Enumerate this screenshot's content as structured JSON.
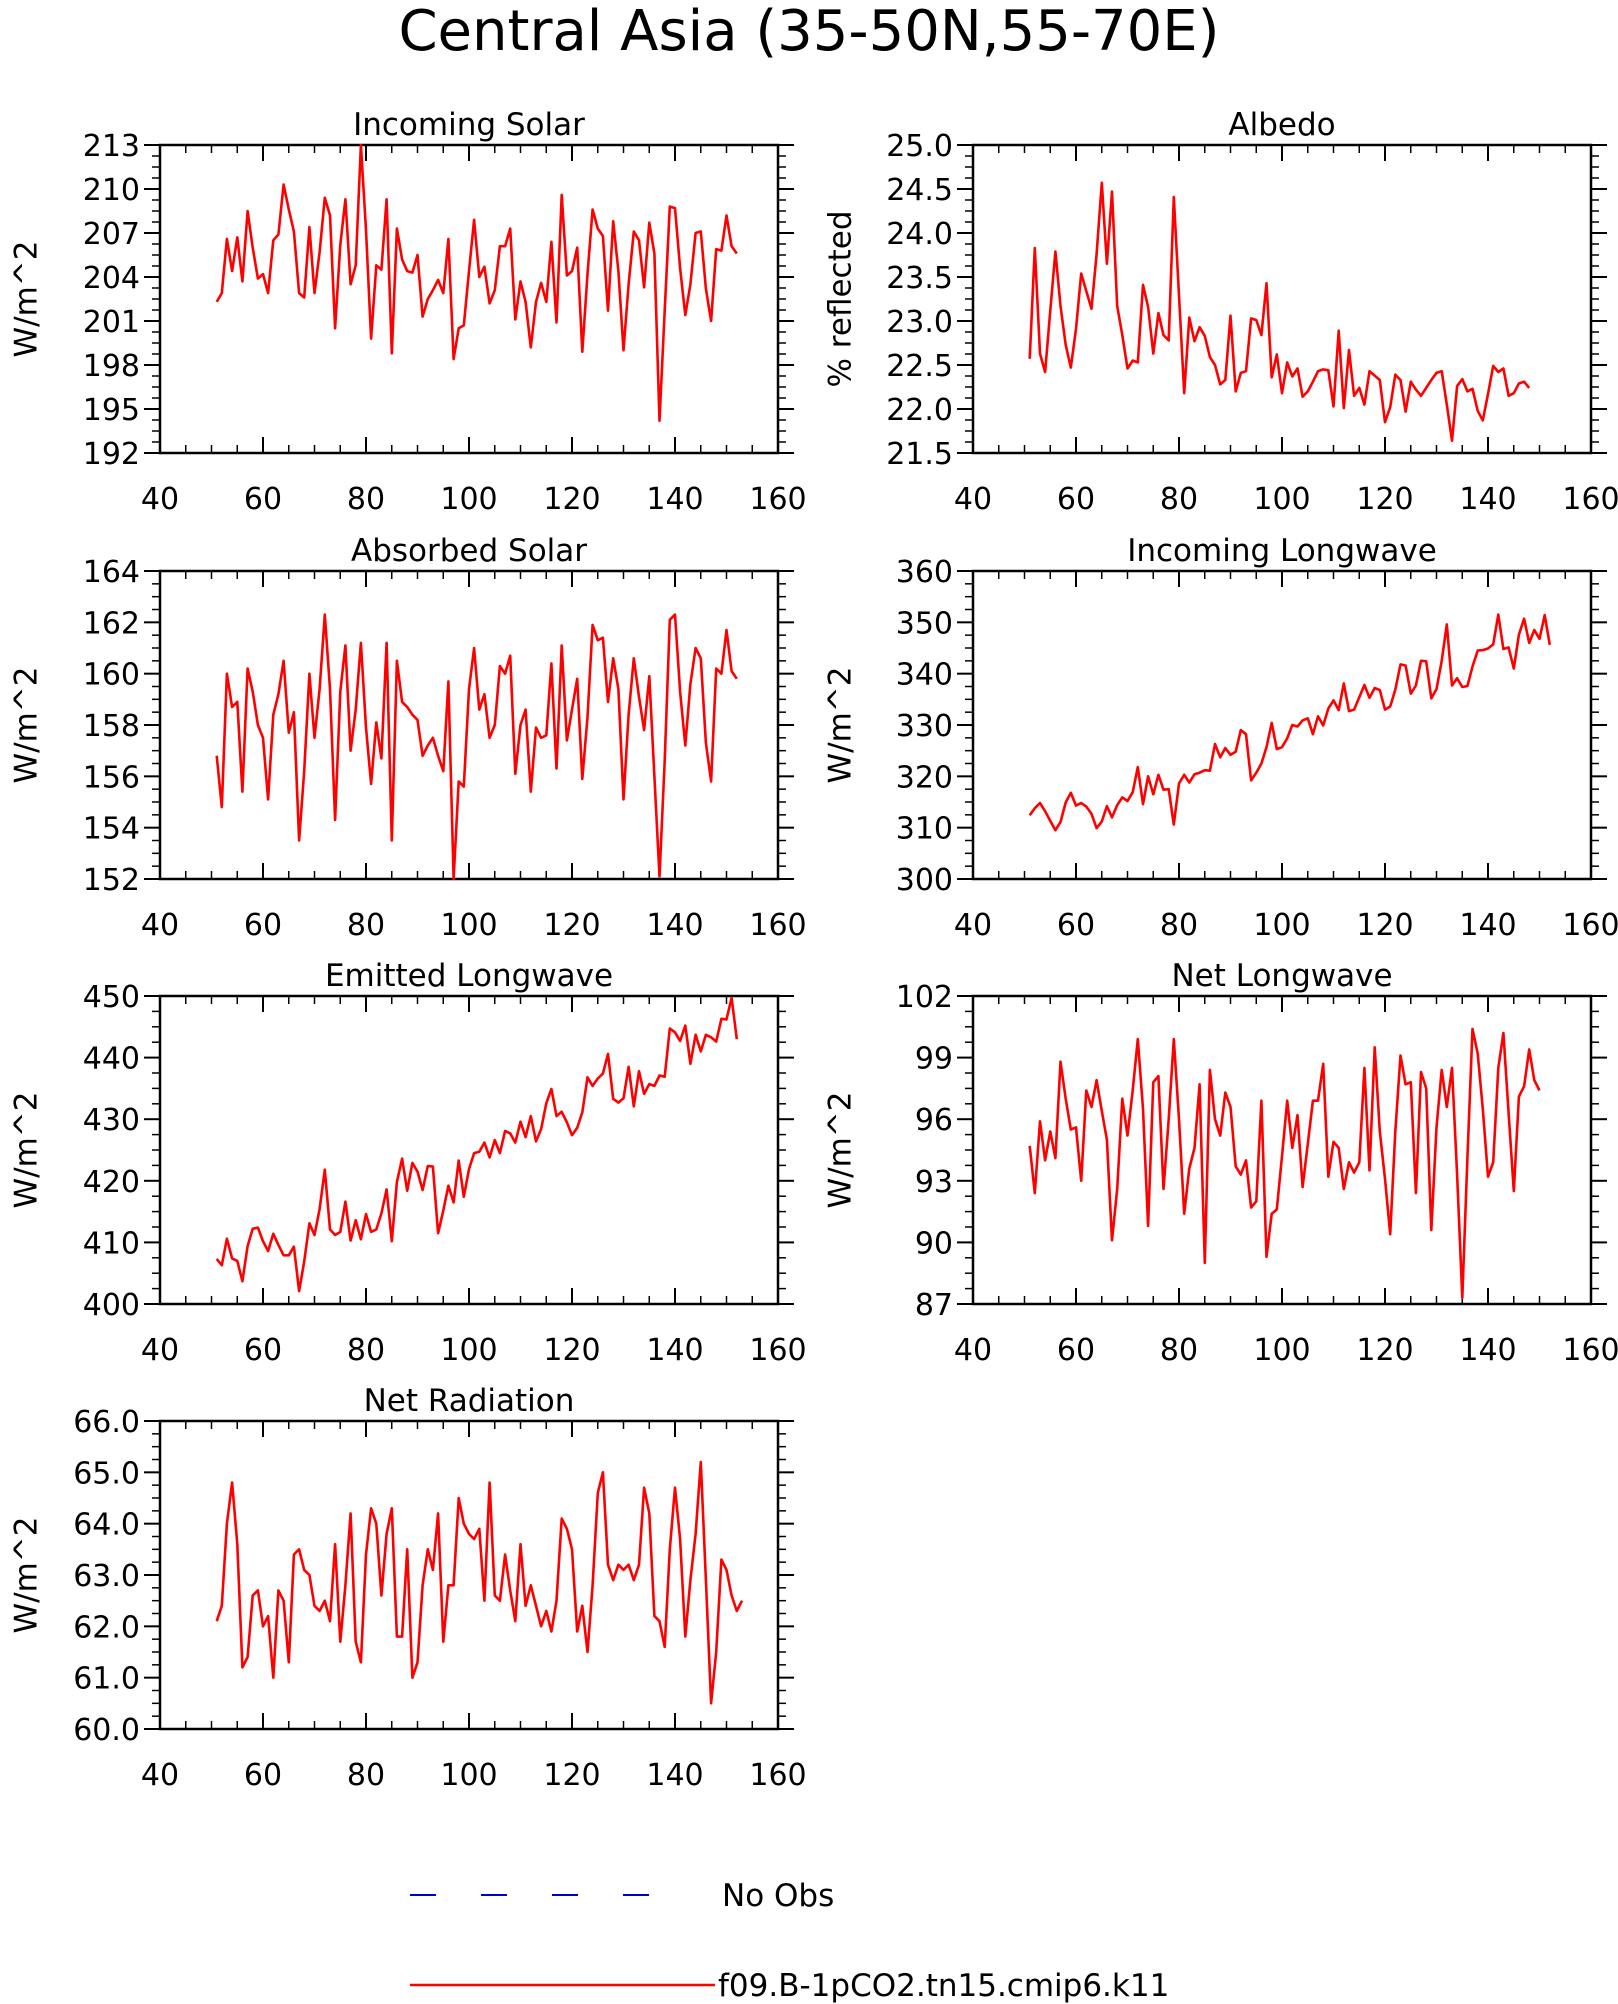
{
  "title": "Central Asia (35-50N,55-70E)",
  "colors": {
    "model": "#ff0000",
    "obs": "#0000cc",
    "axis": "#000000"
  },
  "legend": {
    "obs_label": "No Obs",
    "model_label": "f09.B-1pCO2.tn15.cmip6.k11"
  },
  "chart_data": [
    {
      "type": "line",
      "title": "Incoming Solar",
      "ylabel": "W/m^2",
      "xlim": [
        40,
        160
      ],
      "ylim": [
        192,
        213
      ],
      "xticks": [
        "40",
        "60",
        "80",
        "100",
        "120",
        "140",
        "160"
      ],
      "yticks": [
        "192",
        "195",
        "198",
        "201",
        "204",
        "207",
        "210",
        "213"
      ],
      "x_start": 51,
      "series": [
        {
          "values": [
            202.3,
            202.9,
            206.6,
            204.4,
            206.7,
            203.7,
            208.5,
            206.0,
            203.9,
            204.2,
            202.9,
            206.5,
            206.9,
            210.3,
            208.6,
            207.1,
            202.9,
            202.6,
            207.4,
            202.9,
            205.7,
            209.4,
            208.2,
            200.5,
            206.2,
            209.3,
            203.5,
            204.8,
            213.0,
            207.2,
            199.8,
            204.8,
            204.5,
            209.3,
            198.8,
            207.3,
            205.2,
            204.4,
            204.3,
            205.5,
            201.3,
            202.5,
            203.1,
            203.8,
            202.9,
            206.6,
            198.4,
            200.5,
            200.7,
            204.4,
            207.9,
            204.0,
            204.7,
            202.2,
            203.1,
            206.1,
            206.1,
            207.3,
            201.1,
            203.7,
            202.3,
            199.2,
            202.3,
            203.6,
            202.3,
            206.4,
            200.9,
            209.6,
            204.1,
            204.4,
            206.0,
            198.9,
            204.2,
            208.6,
            207.3,
            206.8,
            201.7,
            207.8,
            204.4,
            199.0,
            203.5,
            207.1,
            206.5,
            203.3,
            207.7,
            205.6,
            194.2,
            201.7,
            208.8,
            208.7,
            204.6,
            201.4,
            203.5,
            207.0,
            207.1,
            203.2,
            201.0,
            205.9,
            205.8,
            208.2,
            206.1,
            205.6
          ]
        }
      ]
    },
    {
      "type": "line",
      "title": "Albedo",
      "ylabel": "% reflected",
      "xlim": [
        40,
        160
      ],
      "ylim": [
        21.5,
        25.0
      ],
      "xticks": [
        "40",
        "60",
        "80",
        "100",
        "120",
        "140",
        "160"
      ],
      "yticks": [
        "21.5",
        "22.0",
        "22.5",
        "23.0",
        "23.5",
        "24.0",
        "24.5",
        "25.0"
      ],
      "x_start": 51,
      "series": [
        {
          "values": [
            22.57,
            23.83,
            22.63,
            22.42,
            23.12,
            23.79,
            23.17,
            22.73,
            22.47,
            22.91,
            23.54,
            23.34,
            23.14,
            23.76,
            24.57,
            23.65,
            24.47,
            23.17,
            22.84,
            22.46,
            22.55,
            22.53,
            23.41,
            23.16,
            22.63,
            23.09,
            22.84,
            22.78,
            24.41,
            23.29,
            22.18,
            23.04,
            22.77,
            22.93,
            22.83,
            22.59,
            22.5,
            22.28,
            22.33,
            23.06,
            22.2,
            22.41,
            22.43,
            23.03,
            23.01,
            22.84,
            23.43,
            22.36,
            22.62,
            22.18,
            22.53,
            22.37,
            22.46,
            22.14,
            22.2,
            22.31,
            22.43,
            22.45,
            22.44,
            22.03,
            22.89,
            22.01,
            22.67,
            22.15,
            22.24,
            22.05,
            22.43,
            22.38,
            22.33,
            21.85,
            22.02,
            22.39,
            22.33,
            21.97,
            22.31,
            22.22,
            22.15,
            22.24,
            22.33,
            22.41,
            22.43,
            22.05,
            21.64,
            22.26,
            22.34,
            22.2,
            22.23,
            21.98,
            21.87,
            22.17,
            22.49,
            22.42,
            22.46,
            22.15,
            22.18,
            22.29,
            22.31,
            22.24
          ]
        }
      ]
    },
    {
      "type": "line",
      "title": "Absorbed Solar",
      "ylabel": "W/m^2",
      "xlim": [
        40,
        160
      ],
      "ylim": [
        152,
        164
      ],
      "xticks": [
        "40",
        "60",
        "80",
        "100",
        "120",
        "140",
        "160"
      ],
      "yticks": [
        "152",
        "154",
        "156",
        "158",
        "160",
        "162",
        "164"
      ],
      "x_start": 51,
      "series": [
        {
          "values": [
            156.8,
            154.8,
            160.0,
            158.7,
            158.9,
            155.4,
            160.2,
            159.3,
            158.0,
            157.5,
            155.1,
            158.4,
            159.2,
            160.5,
            157.7,
            158.5,
            153.5,
            156.2,
            160.0,
            157.5,
            159.4,
            162.3,
            159.4,
            154.3,
            159.3,
            161.1,
            157.0,
            158.6,
            161.2,
            157.9,
            155.7,
            158.1,
            156.7,
            161.2,
            153.5,
            160.5,
            158.9,
            158.7,
            158.4,
            158.2,
            156.8,
            157.2,
            157.5,
            156.8,
            156.2,
            159.7,
            152.0,
            155.8,
            155.6,
            159.4,
            161.0,
            158.6,
            159.2,
            157.5,
            158.0,
            160.3,
            160.0,
            160.7,
            156.1,
            158.0,
            158.6,
            155.4,
            157.9,
            157.5,
            157.6,
            160.4,
            156.3,
            161.1,
            157.4,
            158.6,
            159.8,
            155.9,
            158.3,
            161.9,
            161.3,
            161.4,
            158.9,
            160.6,
            159.4,
            155.1,
            158.4,
            160.6,
            159.1,
            157.8,
            159.9,
            156.0,
            152.1,
            156.6,
            162.1,
            162.3,
            159.3,
            157.2,
            159.6,
            161.0,
            160.6,
            157.3,
            155.8,
            160.2,
            160.0,
            161.7,
            160.1,
            159.8
          ]
        }
      ]
    },
    {
      "type": "line",
      "title": "Incoming Longwave",
      "ylabel": "W/m^2",
      "xlim": [
        40,
        160
      ],
      "ylim": [
        300,
        360
      ],
      "xticks": [
        "40",
        "60",
        "80",
        "100",
        "120",
        "140",
        "160"
      ],
      "yticks": [
        "300",
        "310",
        "320",
        "330",
        "340",
        "350",
        "360"
      ],
      "x_start": 51,
      "series": [
        {
          "values": [
            312.4,
            313.8,
            314.8,
            313.2,
            311.3,
            309.5,
            311.1,
            314.9,
            316.8,
            314.3,
            314.8,
            314.1,
            312.7,
            309.9,
            311.2,
            314.2,
            312.0,
            314.4,
            315.9,
            315.2,
            316.9,
            321.8,
            314.6,
            320.0,
            316.5,
            320.3,
            317.4,
            317.5,
            310.6,
            318.6,
            320.3,
            318.8,
            320.4,
            320.7,
            321.2,
            321.1,
            326.3,
            323.7,
            325.5,
            324.2,
            324.8,
            329.0,
            328.2,
            319.2,
            320.7,
            322.5,
            325.7,
            330.4,
            325.3,
            325.7,
            327.4,
            330.0,
            329.7,
            330.9,
            331.3,
            328.2,
            331.7,
            329.9,
            333.2,
            334.8,
            332.9,
            338.1,
            332.7,
            333.0,
            335.4,
            337.8,
            335.3,
            337.2,
            336.8,
            333.0,
            333.6,
            336.9,
            341.8,
            341.6,
            336.1,
            337.7,
            342.5,
            342.4,
            335.2,
            337.0,
            342.5,
            349.6,
            337.7,
            339.1,
            337.4,
            337.6,
            341.4,
            344.5,
            344.6,
            344.9,
            345.7,
            351.5,
            344.8,
            345.1,
            341.0,
            347.6,
            350.7,
            346.0,
            348.5,
            346.8,
            351.4,
            345.6
          ]
        }
      ]
    },
    {
      "type": "line",
      "title": "Emitted Longwave",
      "ylabel": "W/m^2",
      "xlim": [
        40,
        160
      ],
      "ylim": [
        400,
        450
      ],
      "xticks": [
        "40",
        "60",
        "80",
        "100",
        "120",
        "140",
        "160"
      ],
      "yticks": [
        "400",
        "410",
        "420",
        "430",
        "440",
        "450"
      ],
      "x_start": 51,
      "series": [
        {
          "values": [
            407.3,
            406.3,
            410.6,
            407.4,
            407.0,
            403.7,
            409.4,
            412.2,
            412.4,
            410.2,
            408.6,
            411.4,
            409.6,
            407.9,
            407.9,
            409.3,
            402.1,
            406.9,
            413.1,
            411.2,
            415.4,
            421.8,
            412.1,
            411.2,
            411.7,
            416.6,
            410.3,
            413.6,
            410.5,
            414.6,
            411.7,
            412.1,
            414.7,
            418.6,
            410.2,
            419.8,
            423.6,
            418.4,
            422.9,
            421.5,
            418.5,
            422.4,
            422.3,
            411.5,
            415.2,
            419.2,
            416.5,
            423.3,
            417.4,
            421.9,
            424.5,
            424.7,
            426.2,
            423.8,
            426.6,
            424.5,
            428.1,
            427.7,
            426.2,
            429.6,
            427.1,
            430.5,
            426.4,
            428.4,
            432.6,
            434.9,
            430.5,
            431.2,
            429.5,
            427.4,
            428.6,
            431.1,
            436.8,
            435.4,
            436.6,
            437.4,
            440.6,
            433.3,
            432.7,
            433.4,
            438.5,
            432.1,
            437.8,
            434.1,
            435.7,
            435.4,
            437.1,
            436.9,
            444.7,
            444.1,
            442.7,
            445.2,
            439.0,
            443.7,
            441.0,
            443.7,
            443.3,
            442.6,
            446.3,
            446.2,
            449.7,
            443.0
          ]
        }
      ]
    },
    {
      "type": "line",
      "title": "Net Longwave",
      "ylabel": "W/m^2",
      "xlim": [
        40,
        160
      ],
      "ylim": [
        87,
        102
      ],
      "xticks": [
        "40",
        "60",
        "80",
        "100",
        "120",
        "140",
        "160"
      ],
      "yticks": [
        "87",
        "90",
        "93",
        "96",
        "99",
        "102"
      ],
      "x_start": 51,
      "series": [
        {
          "values": [
            94.7,
            92.4,
            95.9,
            94.0,
            95.4,
            94.1,
            98.8,
            97.0,
            95.5,
            95.6,
            93.0,
            97.4,
            96.6,
            97.9,
            96.4,
            95.0,
            90.1,
            92.6,
            97.0,
            95.2,
            97.4,
            99.9,
            96.5,
            90.8,
            97.8,
            98.1,
            92.6,
            96.0,
            99.9,
            96.0,
            91.4,
            93.6,
            94.6,
            97.7,
            89.0,
            98.4,
            96.0,
            95.2,
            97.3,
            96.6,
            93.7,
            93.3,
            94.0,
            91.7,
            92.0,
            96.9,
            89.3,
            91.4,
            91.6,
            94.2,
            96.9,
            94.6,
            96.2,
            92.7,
            94.8,
            96.9,
            96.9,
            98.7,
            93.2,
            94.9,
            94.6,
            92.6,
            93.9,
            93.4,
            93.9,
            98.5,
            93.5,
            99.5,
            95.4,
            93.1,
            90.4,
            95.4,
            99.1,
            97.7,
            97.8,
            92.4,
            98.3,
            97.5,
            90.6,
            95.6,
            98.4,
            96.6,
            98.5,
            93.3,
            87.3,
            94.1,
            100.4,
            99.2,
            96.5,
            93.2,
            93.9,
            98.5,
            100.2,
            96.3,
            92.5,
            97.1,
            97.6,
            99.4,
            97.9,
            97.4
          ]
        }
      ]
    },
    {
      "type": "line",
      "title": "Net Radiation",
      "ylabel": "W/m^2",
      "xlim": [
        40,
        160
      ],
      "ylim": [
        60.0,
        66.0
      ],
      "xticks": [
        "40",
        "60",
        "80",
        "100",
        "120",
        "140",
        "160"
      ],
      "yticks": [
        "60.0",
        "61.0",
        "62.0",
        "63.0",
        "64.0",
        "65.0",
        "66.0"
      ],
      "x_start": 51,
      "series": [
        {
          "values": [
            62.1,
            62.4,
            64.0,
            64.8,
            63.6,
            61.2,
            61.4,
            62.6,
            62.7,
            62.0,
            62.2,
            61.0,
            62.7,
            62.5,
            61.3,
            63.4,
            63.5,
            63.1,
            63.0,
            62.4,
            62.3,
            62.5,
            62.1,
            63.6,
            61.7,
            62.8,
            64.2,
            61.7,
            61.3,
            63.4,
            64.3,
            64.0,
            62.6,
            63.8,
            64.3,
            61.8,
            61.8,
            63.5,
            61.0,
            61.3,
            62.8,
            63.5,
            63.1,
            64.2,
            61.7,
            62.8,
            62.8,
            64.5,
            64.0,
            63.8,
            63.7,
            63.9,
            62.5,
            64.8,
            62.6,
            62.5,
            63.4,
            62.7,
            62.1,
            63.6,
            62.4,
            62.8,
            62.4,
            62.0,
            62.3,
            61.9,
            62.5,
            64.1,
            63.9,
            63.5,
            61.9,
            62.4,
            61.5,
            62.8,
            64.6,
            65.0,
            63.2,
            62.9,
            63.2,
            63.1,
            63.2,
            62.9,
            63.2,
            64.7,
            64.2,
            62.2,
            62.1,
            61.6,
            63.5,
            64.7,
            63.7,
            61.8,
            62.9,
            63.8,
            65.2,
            62.9,
            60.5,
            61.5,
            63.3,
            63.1,
            62.6,
            62.3,
            62.5
          ]
        }
      ]
    }
  ]
}
